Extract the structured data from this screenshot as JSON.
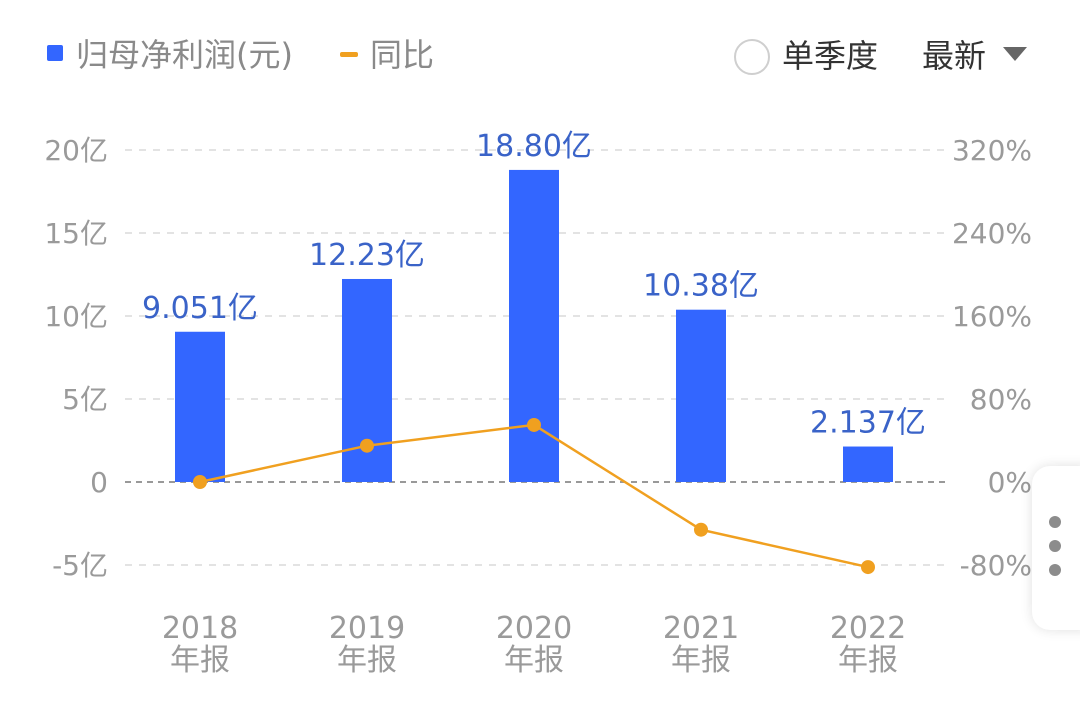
{
  "header": {
    "legend_bar_label": "归母净利润(元)",
    "legend_line_label": "同比",
    "single_quarter_label": "单季度",
    "latest_label": "最新"
  },
  "colors": {
    "bar": "#3366ff",
    "line": "#f0a020",
    "zero_line": "#999999",
    "grid": "#e3e3e3"
  },
  "chart_data": {
    "type": "bar",
    "categories": [
      "2018\n年报",
      "2019\n年报",
      "2020\n年报",
      "2021\n年报",
      "2022\n年报"
    ],
    "category_year": [
      "2018",
      "2019",
      "2020",
      "2021",
      "2022"
    ],
    "category_period": [
      "年报",
      "年报",
      "年报",
      "年报",
      "年报"
    ],
    "series": [
      {
        "name": "归母净利润(元)",
        "type": "bar",
        "axis": "left",
        "values": [
          9.051,
          12.23,
          18.8,
          10.38,
          2.137
        ],
        "data_labels": [
          "9.051亿",
          "12.23亿",
          "18.80亿",
          "10.38亿",
          "2.137亿"
        ]
      },
      {
        "name": "同比",
        "type": "line",
        "axis": "right",
        "values": [
          0,
          35,
          55,
          -46,
          -82
        ]
      }
    ],
    "left_axis": {
      "ylim": [
        -5,
        20
      ],
      "ticks": [
        20,
        15,
        10,
        5,
        0,
        -5
      ],
      "tick_labels": [
        "20亿",
        "15亿",
        "10亿",
        "5亿",
        "0",
        "-5亿"
      ]
    },
    "right_axis": {
      "ylim": [
        -80,
        320
      ],
      "ticks": [
        320,
        240,
        160,
        80,
        0,
        -80
      ],
      "tick_labels": [
        "320%",
        "240%",
        "160%",
        "80%",
        "0%",
        "-80%"
      ]
    },
    "grid": true
  }
}
